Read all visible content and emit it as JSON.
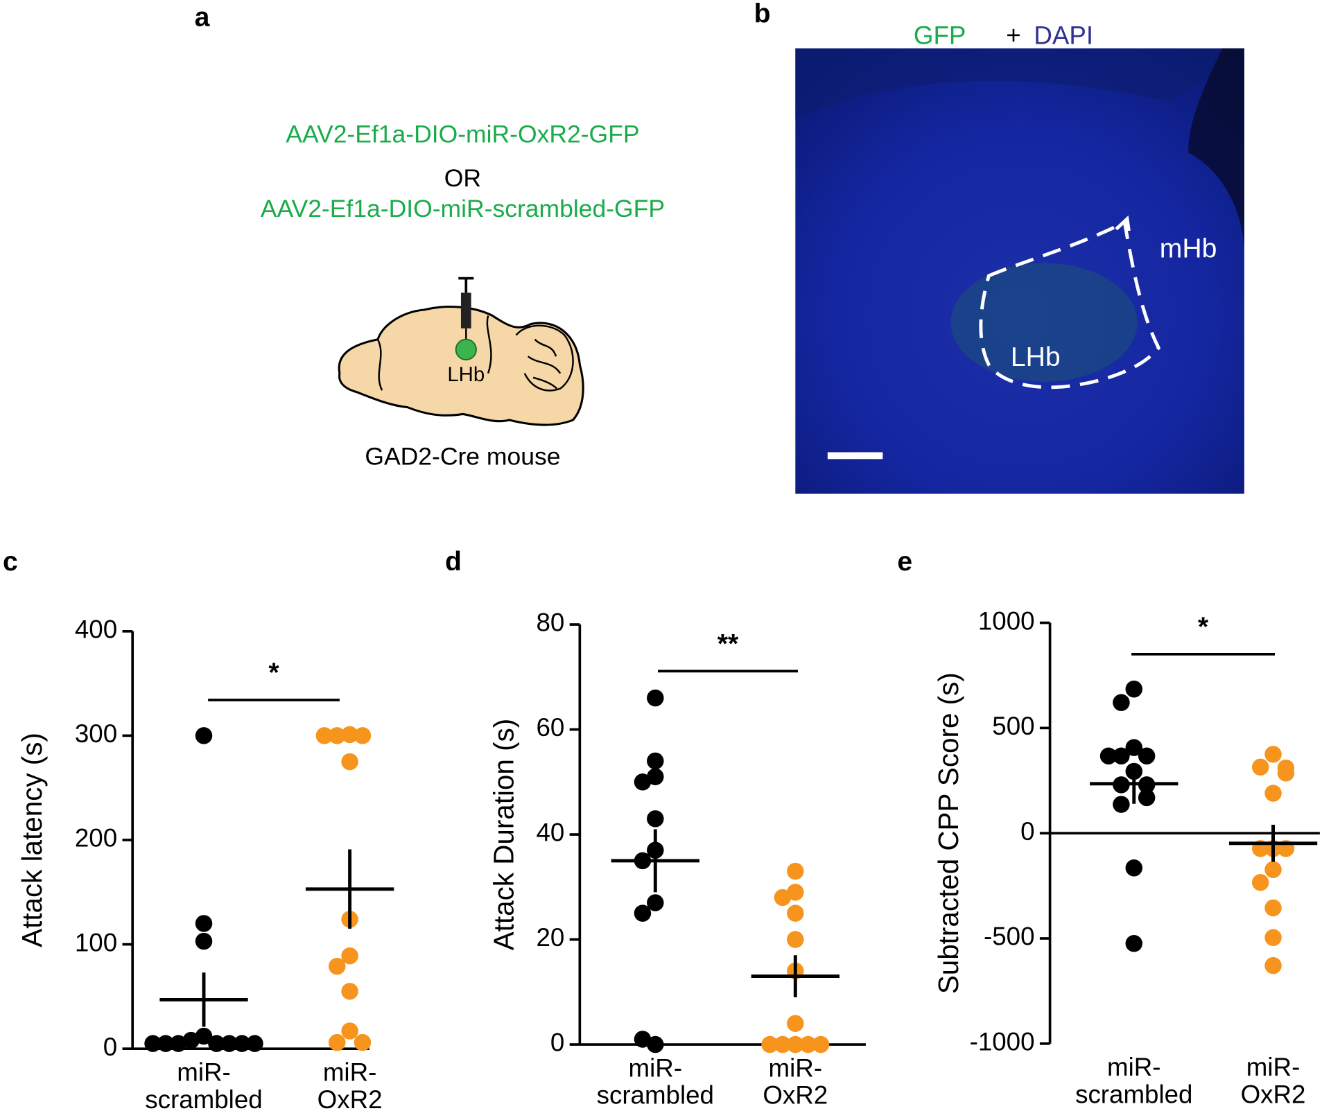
{
  "panel_labels": [
    "a",
    "b",
    "c",
    "d",
    "e"
  ],
  "panel_a": {
    "virus_1": "AAV2-Ef1a-DIO-miR-OxR2-GFP",
    "or": "OR",
    "virus_2": "AAV2-Ef1a-DIO-miR-scrambled-GFP",
    "region": "LHb",
    "animal": "GAD2-Cre mouse"
  },
  "panel_b": {
    "stain_1": "GFP",
    "plus": "+",
    "stain_2": "DAPI",
    "region_1": "mHb",
    "region_2": "LHb"
  },
  "chart_data": [
    {
      "type": "strip",
      "ylabel": "Attack latency (s)",
      "ylim": [
        0,
        400
      ],
      "yticks": [
        0,
        100,
        200,
        300,
        400
      ],
      "categories": [
        [
          "miR-",
          "scrambled"
        ],
        [
          "miR-",
          "OxR2"
        ]
      ],
      "significance": "*",
      "series": [
        {
          "color": "#000000",
          "values": [
            300,
            120,
            103,
            12,
            8,
            5,
            5,
            5,
            5,
            5,
            5,
            5
          ],
          "mean": 47,
          "sem": 26
        },
        {
          "color": "#f7941d",
          "values": [
            301,
            300,
            300,
            300,
            275,
            124,
            89,
            79,
            55,
            17,
            6,
            6
          ],
          "mean": 153,
          "sem": 38
        }
      ]
    },
    {
      "type": "strip",
      "ylabel": "Attack Duration (s)",
      "ylim": [
        0,
        80
      ],
      "yticks": [
        0,
        20,
        40,
        60,
        80
      ],
      "categories": [
        [
          "miR-",
          "scrambled"
        ],
        [
          "miR-",
          "OxR2"
        ]
      ],
      "significance": "**",
      "series": [
        {
          "color": "#000000",
          "values": [
            66,
            54,
            51,
            50,
            43,
            37,
            35,
            27,
            25,
            0,
            1
          ],
          "mean": 35,
          "sem": 6
        },
        {
          "color": "#f7941d",
          "values": [
            33,
            29,
            28,
            25,
            20,
            14,
            4,
            0,
            0,
            0,
            0,
            0
          ],
          "mean": 13,
          "sem": 4
        }
      ]
    },
    {
      "type": "strip",
      "ylabel": "Subtracted CPP Score (s)",
      "ylim": [
        -1000,
        1000
      ],
      "yticks": [
        -1000,
        -500,
        0,
        500,
        1000
      ],
      "categories": [
        [
          "miR-",
          "scrambled"
        ],
        [
          "miR-",
          "OxR2"
        ]
      ],
      "significance": "*",
      "series": [
        {
          "color": "#000000",
          "values": [
            685,
            621,
            407,
            367,
            367,
            367,
            294,
            230,
            230,
            169,
            137,
            -165,
            -524
          ],
          "mean": 235,
          "sem": 95
        },
        {
          "color": "#f7941d",
          "values": [
            375,
            314,
            310,
            286,
            190,
            -73,
            -73,
            -73,
            -173,
            -234,
            -355,
            -496,
            -629
          ],
          "mean": -48,
          "sem": 88
        }
      ]
    }
  ]
}
